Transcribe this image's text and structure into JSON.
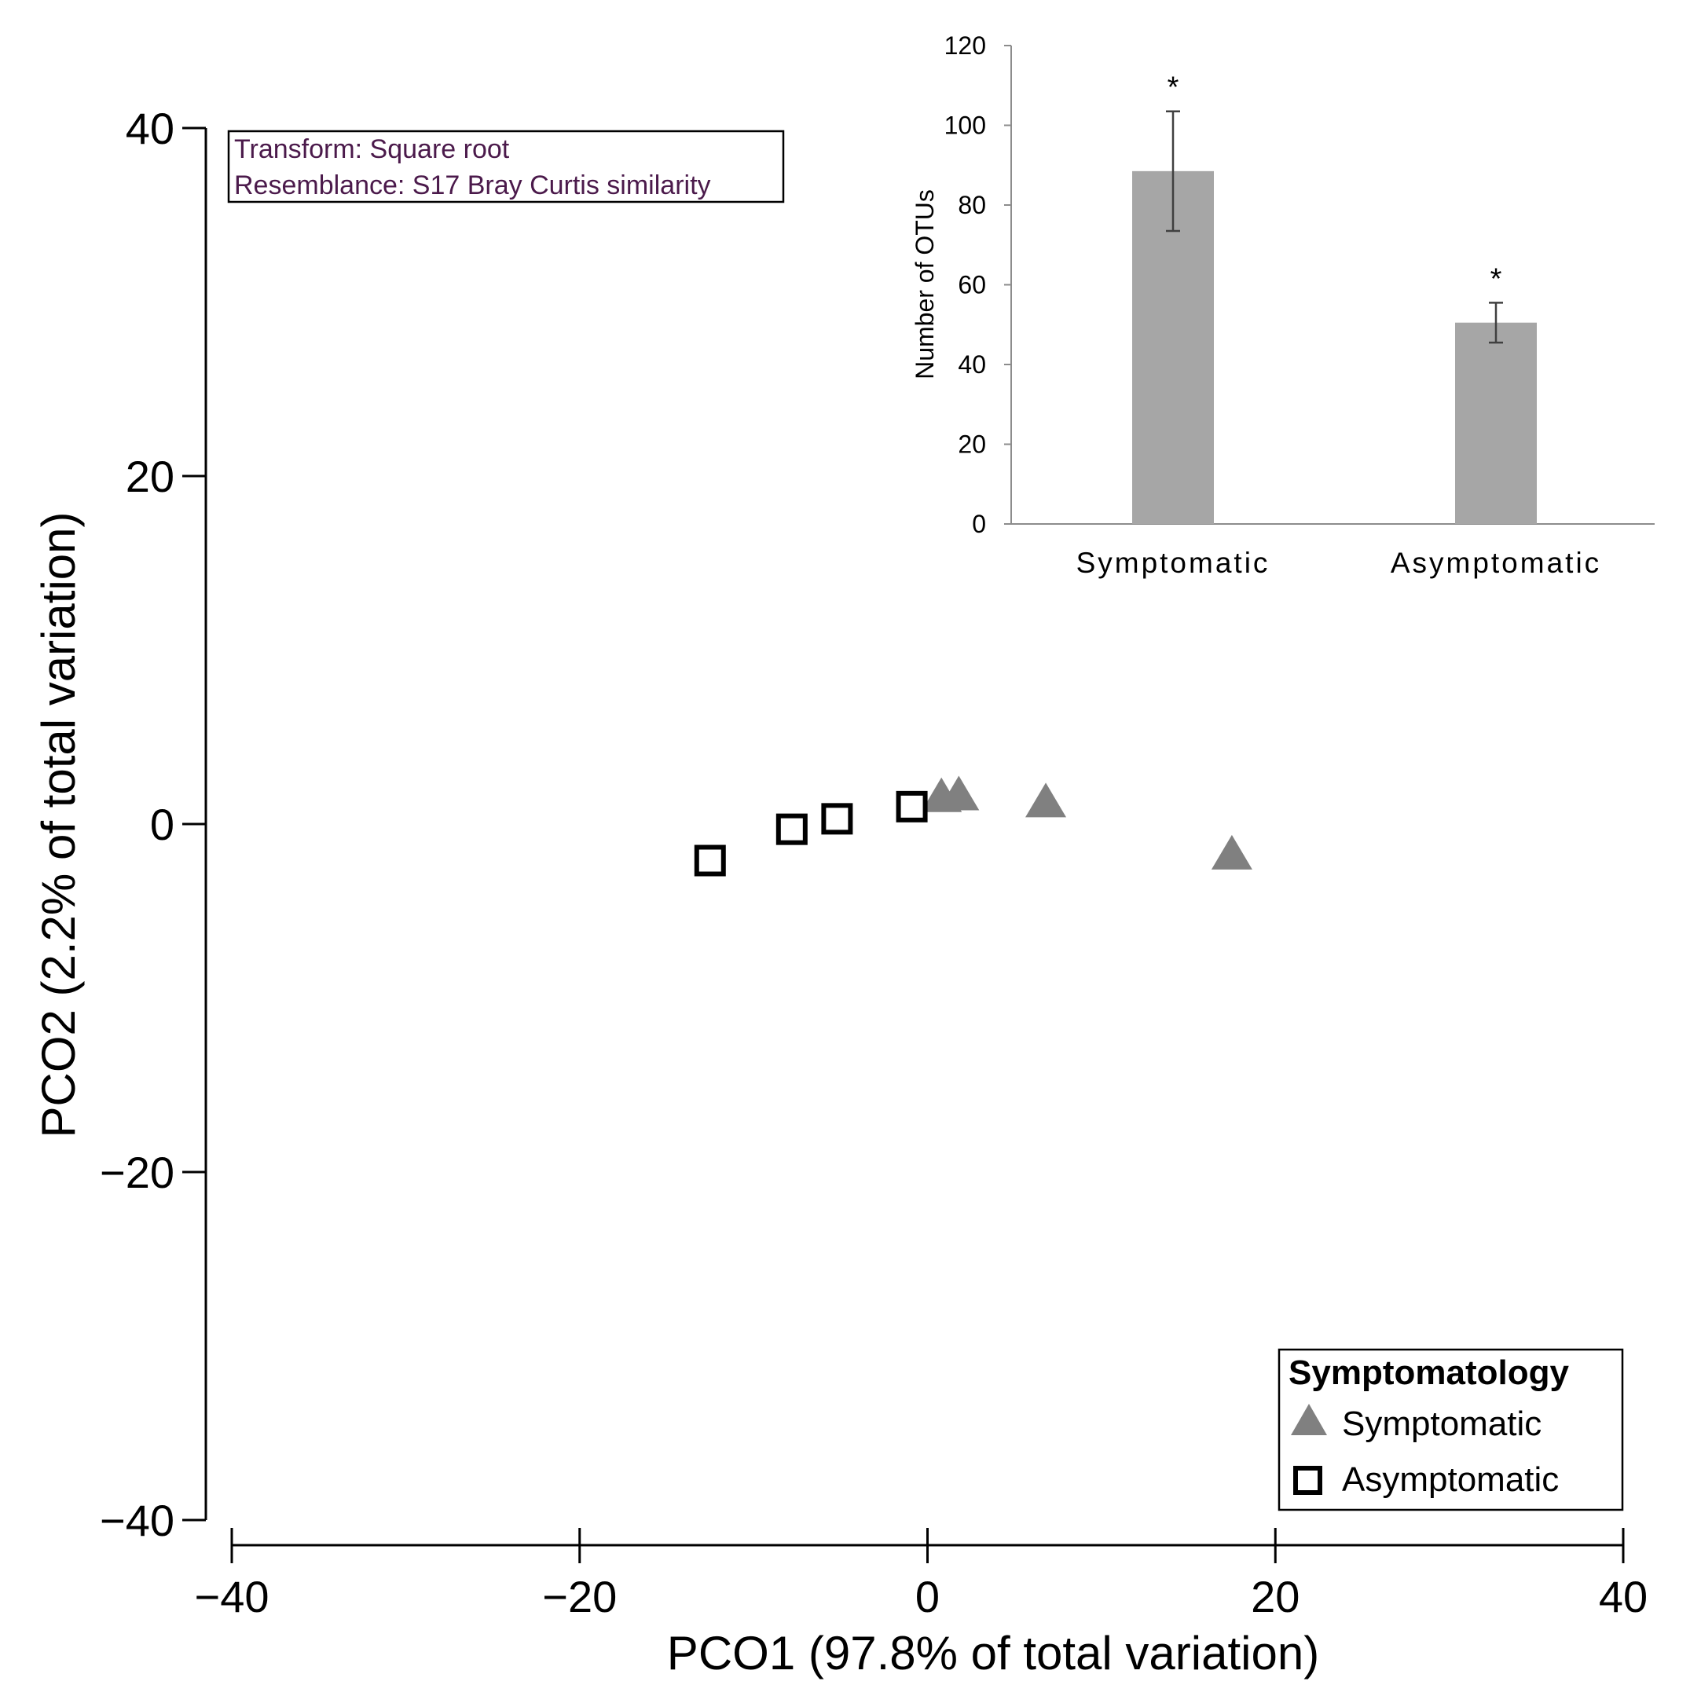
{
  "chart_data": [
    {
      "type": "scatter",
      "title": "",
      "xlabel": "PCO1 (97.8% of total variation)",
      "ylabel": "PCO2 (2.2% of total variation)",
      "xlim": [
        -40,
        40
      ],
      "ylim": [
        -40,
        40
      ],
      "xticks": [
        -40,
        -20,
        0,
        20,
        40
      ],
      "yticks": [
        40,
        20,
        0,
        -20,
        -40
      ],
      "xtick_labels": [
        "−40",
        "−20",
        "0",
        "20",
        "40"
      ],
      "ytick_labels": [
        "40",
        "20",
        "0",
        "−20",
        "−40"
      ],
      "annotation": {
        "line1": "Transform: Square root",
        "line2": "Resemblance: S17 Bray Curtis similarity"
      },
      "legend": {
        "title": "Symptomatology",
        "placement": "bottom-right",
        "entries": [
          "Symptomatic",
          "Asymptomatic"
        ]
      },
      "series": [
        {
          "name": "Symptomatic",
          "marker": "triangle",
          "color": "#808080",
          "points": [
            [
              0.8,
              1.5
            ],
            [
              1.8,
              1.6
            ],
            [
              6.8,
              1.2
            ],
            [
              17.5,
              -1.8
            ]
          ]
        },
        {
          "name": "Asymptomatic",
          "marker": "square-open",
          "color": "#000000",
          "points": [
            [
              -12.5,
              -2.1
            ],
            [
              -7.8,
              -0.3
            ],
            [
              -5.2,
              0.3
            ],
            [
              -0.9,
              1.0
            ]
          ]
        }
      ]
    },
    {
      "type": "bar",
      "title": "",
      "xlabel": "",
      "ylabel": "Number of OTUs",
      "ylim": [
        0,
        120
      ],
      "yticks": [
        0,
        20,
        40,
        60,
        80,
        100,
        120
      ],
      "categories": [
        "Symptomatic",
        "Asymptomatic"
      ],
      "values": [
        88.5,
        50.5
      ],
      "errors": [
        15,
        5
      ],
      "annotations": [
        "*",
        "*"
      ],
      "bar_color": "#a6a6a6"
    }
  ]
}
